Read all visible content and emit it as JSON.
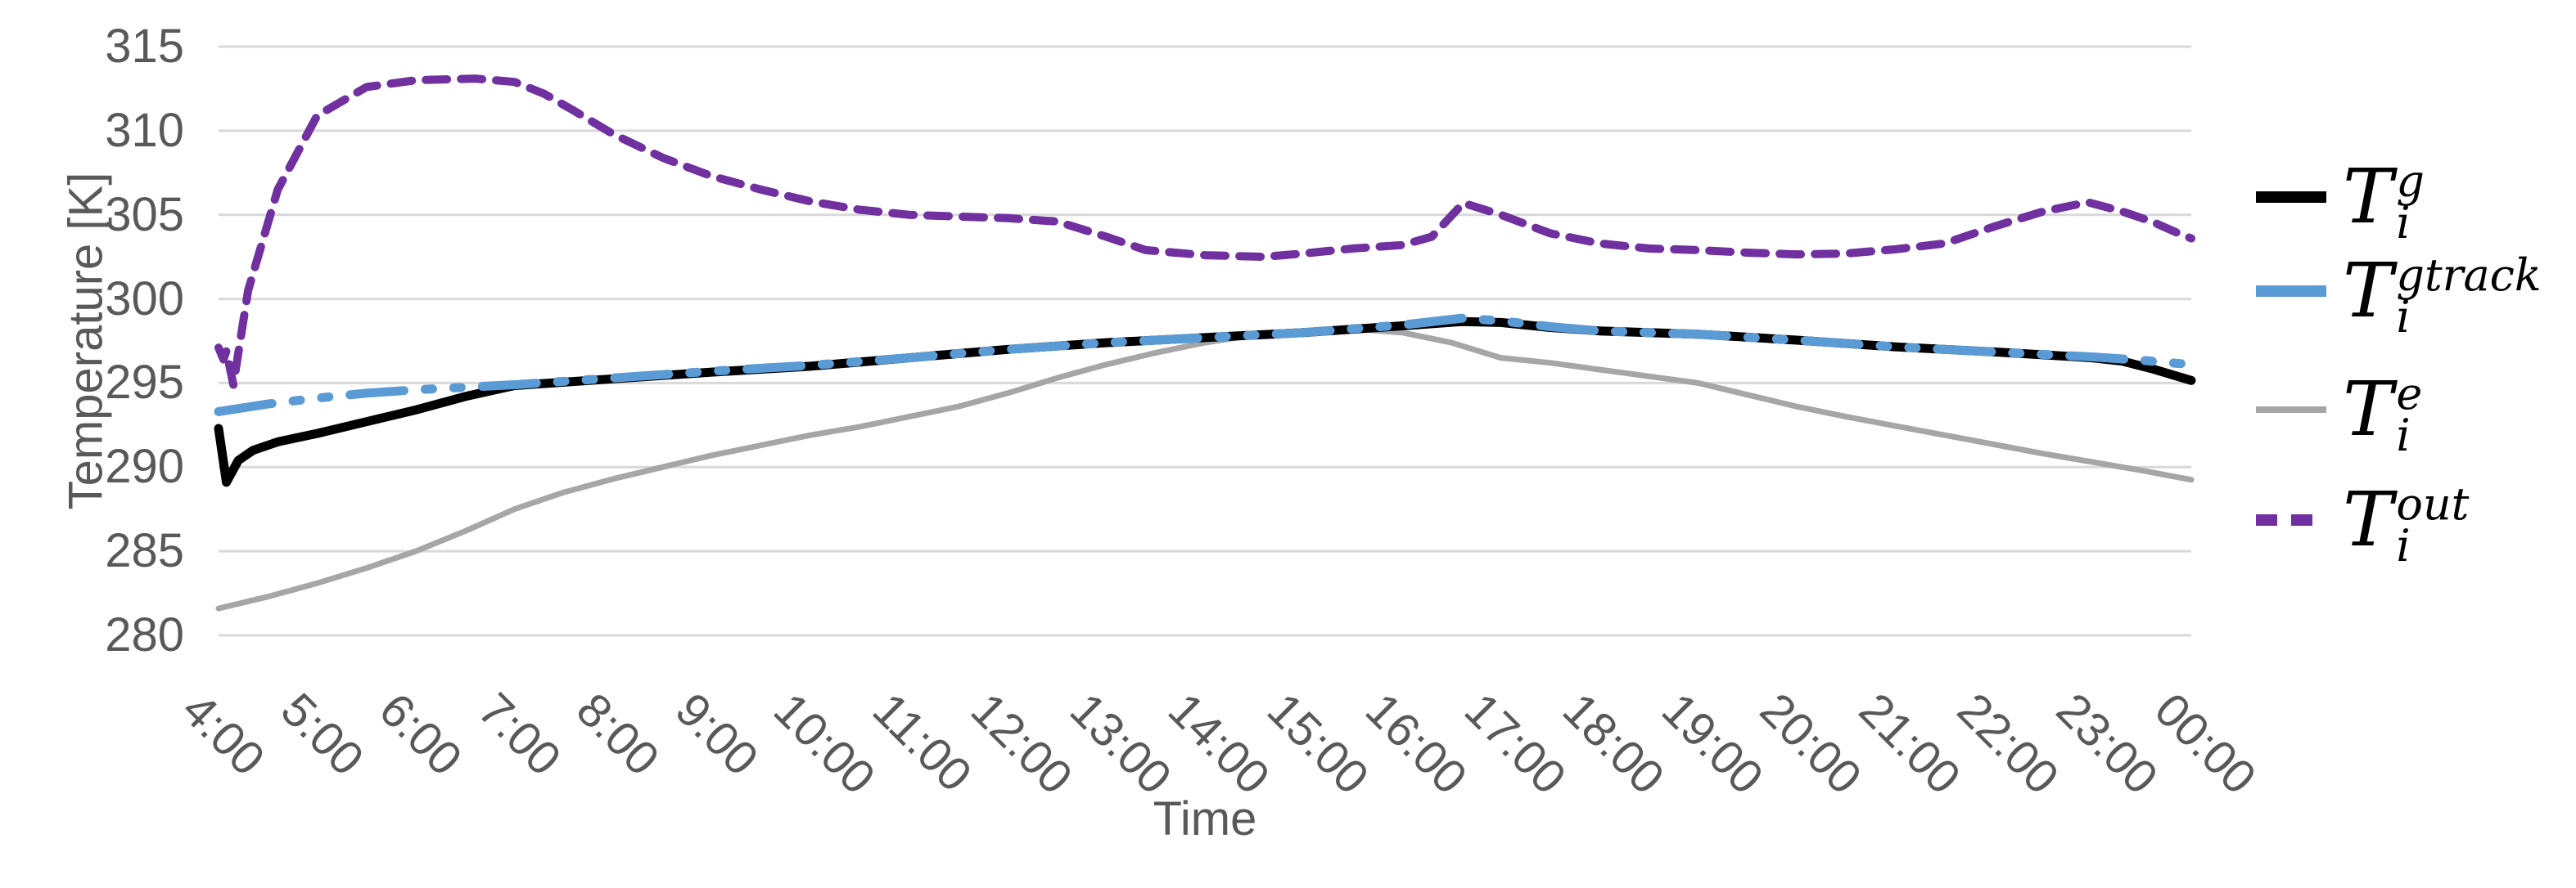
{
  "chart_data": {
    "type": "line",
    "title": "",
    "xlabel": "Time",
    "ylabel": "Temperature [K]",
    "xlim": [
      4,
      24
    ],
    "ylim": [
      280,
      315
    ],
    "grid": "horizontal",
    "legend_position": "right",
    "axis_text_color": "#595959",
    "gridline_color": "#D9D9D9",
    "yticks": [
      280,
      285,
      290,
      295,
      300,
      305,
      310,
      315
    ],
    "x_ticks": [
      {
        "h": 4,
        "label": "4:00"
      },
      {
        "h": 5,
        "label": "5:00"
      },
      {
        "h": 6,
        "label": "6:00"
      },
      {
        "h": 7,
        "label": "7:00"
      },
      {
        "h": 8,
        "label": "8:00"
      },
      {
        "h": 9,
        "label": "9:00"
      },
      {
        "h": 10,
        "label": "10:00"
      },
      {
        "h": 11,
        "label": "11:00"
      },
      {
        "h": 12,
        "label": "12:00"
      },
      {
        "h": 13,
        "label": "13:00"
      },
      {
        "h": 14,
        "label": "14:00"
      },
      {
        "h": 15,
        "label": "15:00"
      },
      {
        "h": 16,
        "label": "16:00"
      },
      {
        "h": 17,
        "label": "17:00"
      },
      {
        "h": 18,
        "label": "18:00"
      },
      {
        "h": 19,
        "label": "19:00"
      },
      {
        "h": 20,
        "label": "20:00"
      },
      {
        "h": 21,
        "label": "21:00"
      },
      {
        "h": 22,
        "label": "22:00"
      },
      {
        "h": 23,
        "label": "23:00"
      },
      {
        "h": 24,
        "label": "00:00"
      }
    ],
    "series": [
      {
        "name": "Ti_g",
        "label_base": "T",
        "label_sub": "i",
        "label_sup": "g",
        "color": "#000000",
        "style": "solid",
        "points": [
          [
            4.0,
            292.3
          ],
          [
            4.08,
            289.1
          ],
          [
            4.2,
            290.4
          ],
          [
            4.35,
            291.0
          ],
          [
            4.6,
            291.5
          ],
          [
            5.0,
            292.0
          ],
          [
            5.5,
            292.7
          ],
          [
            6.0,
            293.4
          ],
          [
            6.5,
            294.2
          ],
          [
            7.0,
            294.85
          ],
          [
            7.5,
            295.05
          ],
          [
            8.0,
            295.25
          ],
          [
            9.0,
            295.65
          ],
          [
            10.0,
            296.0
          ],
          [
            11.0,
            296.5
          ],
          [
            12.0,
            297.0
          ],
          [
            13.0,
            297.4
          ],
          [
            14.0,
            297.7
          ],
          [
            15.0,
            298.0
          ],
          [
            16.0,
            298.4
          ],
          [
            16.6,
            298.65
          ],
          [
            17.0,
            298.6
          ],
          [
            17.5,
            298.3
          ],
          [
            18.0,
            298.1
          ],
          [
            19.0,
            297.9
          ],
          [
            20.0,
            297.55
          ],
          [
            21.0,
            297.15
          ],
          [
            22.0,
            296.85
          ],
          [
            23.0,
            296.5
          ],
          [
            23.3,
            296.3
          ],
          [
            23.6,
            295.85
          ],
          [
            24.0,
            295.15
          ]
        ]
      },
      {
        "name": "Ti_gtrack",
        "label_base": "T",
        "label_sub": "i",
        "label_sup": "gtrack",
        "color": "#5B9BD5",
        "style": "dash-dot-dot",
        "points": [
          [
            4.0,
            293.3
          ],
          [
            4.5,
            293.75
          ],
          [
            5.0,
            294.1
          ],
          [
            5.5,
            294.4
          ],
          [
            6.0,
            294.6
          ],
          [
            6.5,
            294.75
          ],
          [
            7.0,
            294.9
          ],
          [
            7.5,
            295.1
          ],
          [
            8.0,
            295.3
          ],
          [
            9.0,
            295.7
          ],
          [
            10.0,
            296.05
          ],
          [
            11.0,
            296.5
          ],
          [
            12.0,
            297.0
          ],
          [
            13.0,
            297.4
          ],
          [
            14.0,
            297.7
          ],
          [
            15.0,
            298.0
          ],
          [
            16.0,
            298.45
          ],
          [
            16.6,
            298.85
          ],
          [
            17.0,
            298.7
          ],
          [
            17.5,
            298.35
          ],
          [
            18.0,
            298.1
          ],
          [
            19.0,
            297.9
          ],
          [
            20.0,
            297.55
          ],
          [
            21.0,
            297.15
          ],
          [
            22.0,
            296.85
          ],
          [
            23.0,
            296.55
          ],
          [
            23.5,
            296.35
          ],
          [
            24.0,
            296.1
          ]
        ]
      },
      {
        "name": "Ti_e",
        "label_base": "T",
        "label_sub": "i",
        "label_sup": "e",
        "color": "#A6A6A6",
        "style": "solid",
        "points": [
          [
            4.0,
            281.6
          ],
          [
            4.5,
            282.3
          ],
          [
            5.0,
            283.1
          ],
          [
            5.5,
            284.0
          ],
          [
            6.0,
            285.0
          ],
          [
            6.5,
            286.2
          ],
          [
            7.0,
            287.5
          ],
          [
            7.5,
            288.5
          ],
          [
            8.0,
            289.3
          ],
          [
            8.5,
            290.0
          ],
          [
            9.0,
            290.7
          ],
          [
            9.5,
            291.3
          ],
          [
            10.0,
            291.9
          ],
          [
            10.5,
            292.4
          ],
          [
            11.0,
            293.0
          ],
          [
            11.5,
            293.6
          ],
          [
            12.0,
            294.4
          ],
          [
            12.5,
            295.3
          ],
          [
            13.0,
            296.1
          ],
          [
            13.5,
            296.8
          ],
          [
            14.0,
            297.4
          ],
          [
            14.5,
            297.85
          ],
          [
            15.0,
            298.1
          ],
          [
            15.45,
            298.25
          ],
          [
            16.0,
            298.0
          ],
          [
            16.5,
            297.4
          ],
          [
            17.0,
            296.5
          ],
          [
            17.5,
            296.2
          ],
          [
            18.0,
            295.8
          ],
          [
            18.5,
            295.4
          ],
          [
            19.0,
            295.0
          ],
          [
            19.5,
            294.3
          ],
          [
            20.0,
            293.6
          ],
          [
            20.5,
            293.0
          ],
          [
            21.0,
            292.45
          ],
          [
            21.5,
            291.9
          ],
          [
            22.0,
            291.35
          ],
          [
            22.5,
            290.8
          ],
          [
            23.0,
            290.3
          ],
          [
            23.5,
            289.8
          ],
          [
            24.0,
            289.25
          ]
        ]
      },
      {
        "name": "Ti_out",
        "label_base": "T",
        "label_sub": "i",
        "label_sup": "out",
        "color": "#7030A0",
        "style": "dashed",
        "points": [
          [
            4.0,
            297.1
          ],
          [
            4.05,
            296.4
          ],
          [
            4.08,
            296.9
          ],
          [
            4.15,
            294.9
          ],
          [
            4.3,
            300.5
          ],
          [
            4.6,
            306.5
          ],
          [
            5.0,
            310.9
          ],
          [
            5.5,
            312.6
          ],
          [
            6.0,
            313.0
          ],
          [
            6.6,
            313.1
          ],
          [
            7.0,
            312.9
          ],
          [
            7.3,
            312.2
          ],
          [
            7.6,
            311.2
          ],
          [
            8.0,
            309.8
          ],
          [
            8.5,
            308.4
          ],
          [
            9.0,
            307.3
          ],
          [
            9.5,
            306.5
          ],
          [
            10.0,
            305.8
          ],
          [
            10.5,
            305.3
          ],
          [
            11.0,
            305.0
          ],
          [
            11.5,
            304.9
          ],
          [
            12.0,
            304.8
          ],
          [
            12.5,
            304.6
          ],
          [
            13.0,
            303.7
          ],
          [
            13.4,
            302.9
          ],
          [
            14.0,
            302.6
          ],
          [
            14.6,
            302.5
          ],
          [
            15.0,
            302.7
          ],
          [
            15.5,
            303.0
          ],
          [
            16.0,
            303.2
          ],
          [
            16.3,
            303.7
          ],
          [
            16.62,
            305.7
          ],
          [
            17.0,
            305.0
          ],
          [
            17.5,
            303.9
          ],
          [
            18.0,
            303.3
          ],
          [
            18.5,
            303.0
          ],
          [
            19.0,
            302.9
          ],
          [
            19.5,
            302.75
          ],
          [
            20.0,
            302.65
          ],
          [
            20.5,
            302.7
          ],
          [
            21.0,
            302.95
          ],
          [
            21.5,
            303.3
          ],
          [
            22.0,
            304.3
          ],
          [
            22.5,
            305.2
          ],
          [
            22.95,
            305.75
          ],
          [
            23.3,
            305.2
          ],
          [
            23.6,
            304.6
          ],
          [
            23.85,
            303.95
          ],
          [
            24.0,
            303.6
          ]
        ]
      }
    ]
  }
}
